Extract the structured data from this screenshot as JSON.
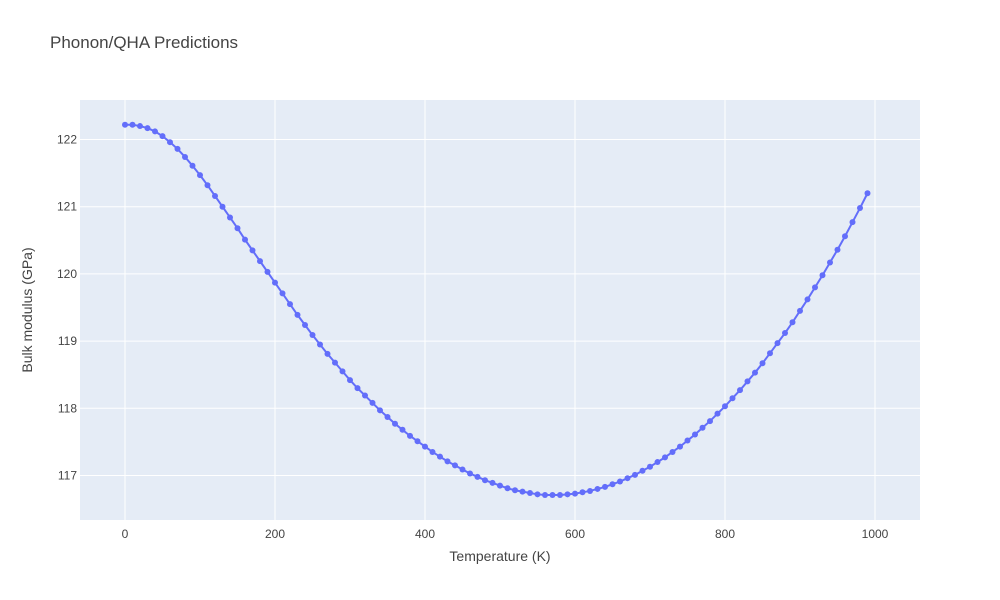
{
  "chart_data": {
    "type": "line",
    "mode": "lines+markers",
    "title": "Phonon/QHA Predictions",
    "xlabel": "Temperature (K)",
    "ylabel": "Bulk modulus (GPa)",
    "xlim": [
      -60,
      1060
    ],
    "ylim": [
      116.45,
      122.6
    ],
    "xticks": [
      0,
      200,
      400,
      600,
      800,
      1000
    ],
    "yticks": [
      117,
      118,
      119,
      120,
      121,
      122
    ],
    "xtick_labels": [
      "0",
      "200",
      "400",
      "600",
      "800",
      "1000"
    ],
    "ytick_labels": [
      "117",
      "118",
      "119",
      "120",
      "121",
      "122"
    ],
    "grid": true,
    "legend": "none",
    "colors": {
      "series": "#636efa",
      "plot_background": "#e5ecf6",
      "grid": "#ffffff"
    },
    "series": [
      {
        "x": [
          0,
          10,
          20,
          30,
          40,
          50,
          60,
          70,
          80,
          90,
          100,
          110,
          120,
          130,
          140,
          150,
          160,
          170,
          180,
          190,
          200,
          210,
          220,
          230,
          240,
          250,
          260,
          270,
          280,
          290,
          300,
          310,
          320,
          330,
          340,
          350,
          360,
          370,
          380,
          390,
          400,
          410,
          420,
          430,
          440,
          450,
          460,
          470,
          480,
          490,
          500,
          510,
          520,
          530,
          540,
          550,
          560,
          570,
          580,
          590,
          600,
          610,
          620,
          630,
          640,
          650,
          660,
          670,
          680,
          690,
          700,
          710,
          720,
          730,
          740,
          750,
          760,
          770,
          780,
          790,
          800,
          810,
          820,
          830,
          840,
          850,
          860,
          870,
          880,
          890,
          900,
          910,
          920,
          930,
          940,
          950,
          960,
          970,
          980,
          990
        ],
        "y": [
          122.22,
          122.22,
          122.2,
          122.17,
          122.12,
          122.05,
          121.96,
          121.86,
          121.74,
          121.61,
          121.47,
          121.32,
          121.16,
          121.0,
          120.84,
          120.68,
          120.51,
          120.35,
          120.19,
          120.03,
          119.87,
          119.71,
          119.55,
          119.39,
          119.24,
          119.09,
          118.95,
          118.81,
          118.68,
          118.55,
          118.42,
          118.3,
          118.19,
          118.08,
          117.97,
          117.87,
          117.77,
          117.68,
          117.59,
          117.51,
          117.43,
          117.35,
          117.28,
          117.21,
          117.15,
          117.09,
          117.03,
          116.98,
          116.93,
          116.89,
          116.85,
          116.81,
          116.78,
          116.76,
          116.74,
          116.72,
          116.71,
          116.71,
          116.71,
          116.72,
          116.73,
          116.75,
          116.77,
          116.8,
          116.83,
          116.87,
          116.91,
          116.96,
          117.01,
          117.07,
          117.13,
          117.2,
          117.27,
          117.35,
          117.43,
          117.52,
          117.61,
          117.71,
          117.81,
          117.92,
          118.03,
          118.15,
          118.27,
          118.4,
          118.53,
          118.67,
          118.82,
          118.97,
          119.12,
          119.28,
          119.45,
          119.62,
          119.8,
          119.98,
          120.17,
          120.36,
          120.56,
          120.77,
          120.98,
          121.2
        ]
      }
    ]
  }
}
